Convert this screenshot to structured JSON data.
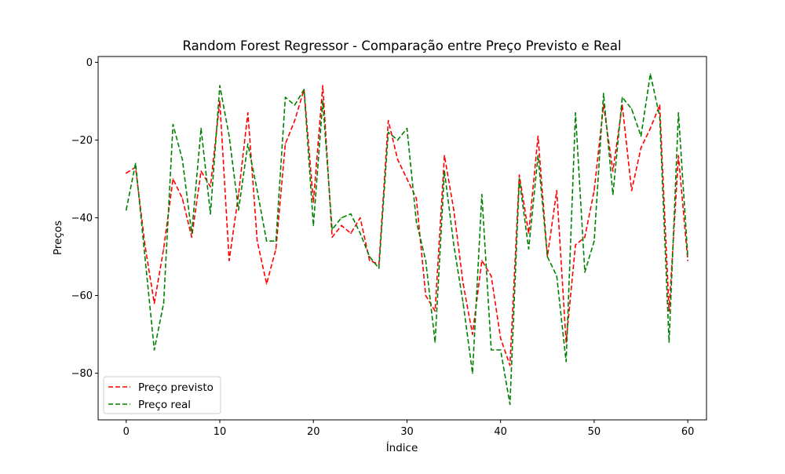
{
  "chart_data": {
    "type": "line",
    "title": "Random Forest Regressor - Comparação entre Preço Previsto e Real",
    "xlabel": "Índice",
    "ylabel": "Preços",
    "xlim": [
      -3,
      62
    ],
    "ylim": [
      -92,
      1.5
    ],
    "xticks": [
      0,
      10,
      20,
      30,
      40,
      50,
      60
    ],
    "xtick_labels": [
      "0",
      "10",
      "20",
      "30",
      "40",
      "50",
      "60"
    ],
    "yticks": [
      0,
      -20,
      -40,
      -60,
      -80
    ],
    "ytick_labels": [
      "0",
      "−20",
      "−40",
      "−60",
      "−80"
    ],
    "grid": false,
    "legend_position": "lower-left",
    "x": [
      0,
      1,
      2,
      3,
      4,
      5,
      6,
      7,
      8,
      9,
      10,
      11,
      12,
      13,
      14,
      15,
      16,
      17,
      18,
      19,
      20,
      21,
      22,
      23,
      24,
      25,
      26,
      27,
      28,
      29,
      30,
      31,
      32,
      33,
      34,
      35,
      36,
      37,
      38,
      39,
      40,
      41,
      42,
      43,
      44,
      45,
      46,
      47,
      48,
      49,
      50,
      51,
      52,
      53,
      54,
      55,
      56,
      57,
      58,
      59,
      60
    ],
    "series": [
      {
        "name": "Preço previsto",
        "color": "#ff0000",
        "line_style": "dashed",
        "values": [
          -28.5,
          -27,
          -47,
          -62,
          -48,
          -30,
          -35,
          -45,
          -28,
          -32,
          -10,
          -51,
          -34,
          -13,
          -46,
          -57,
          -48,
          -21,
          -15,
          -7,
          -36,
          -6,
          -45,
          -42,
          -44,
          -40,
          -51,
          -52,
          -15,
          -25,
          -30,
          -35,
          -60,
          -64,
          -24,
          -38,
          -57,
          -70,
          -51,
          -55,
          -71,
          -78,
          -29,
          -44,
          -19,
          -50,
          -33,
          -72,
          -47,
          -45,
          -33,
          -11,
          -28,
          -11,
          -33,
          -22,
          -17,
          -11,
          -64,
          -24,
          -51
        ]
      },
      {
        "name": "Preço real",
        "color": "#008000",
        "line_style": "dashed",
        "values": [
          -38,
          -26,
          -50,
          -74,
          -62,
          -16,
          -25,
          -44,
          -17,
          -39,
          -6,
          -19,
          -38,
          -21,
          -33,
          -46,
          -46,
          -9,
          -11,
          -7,
          -42,
          -10,
          -43,
          -40,
          -39,
          -44,
          -50,
          -53,
          -18,
          -20,
          -17,
          -41,
          -51,
          -72,
          -28,
          -47,
          -62,
          -80,
          -34,
          -74,
          -74,
          -88,
          -30,
          -48,
          -24,
          -50,
          -55,
          -77,
          -13,
          -54,
          -46,
          -8,
          -34,
          -9,
          -12,
          -19,
          -3,
          -14,
          -72,
          -13,
          -50
        ]
      }
    ]
  }
}
